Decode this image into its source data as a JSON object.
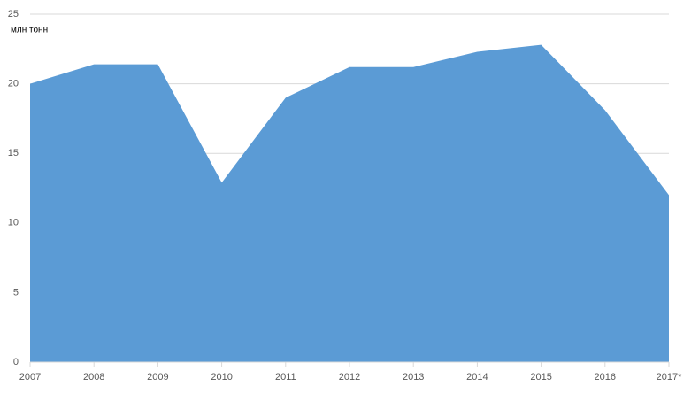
{
  "chart_data": {
    "type": "area",
    "y_label": "млн тонн",
    "categories": [
      "2007",
      "2008",
      "2009",
      "2010",
      "2011",
      "2012",
      "2013",
      "2014",
      "2015",
      "2016",
      "2017*"
    ],
    "values": [
      20,
      21.4,
      21.4,
      12.9,
      19.0,
      21.2,
      21.2,
      22.3,
      22.8,
      18.1,
      12.0
    ],
    "color": "#5b9bd5",
    "ylim": [
      0,
      25
    ],
    "yticks": [
      0,
      5,
      10,
      15,
      20,
      25
    ],
    "grid": true
  }
}
